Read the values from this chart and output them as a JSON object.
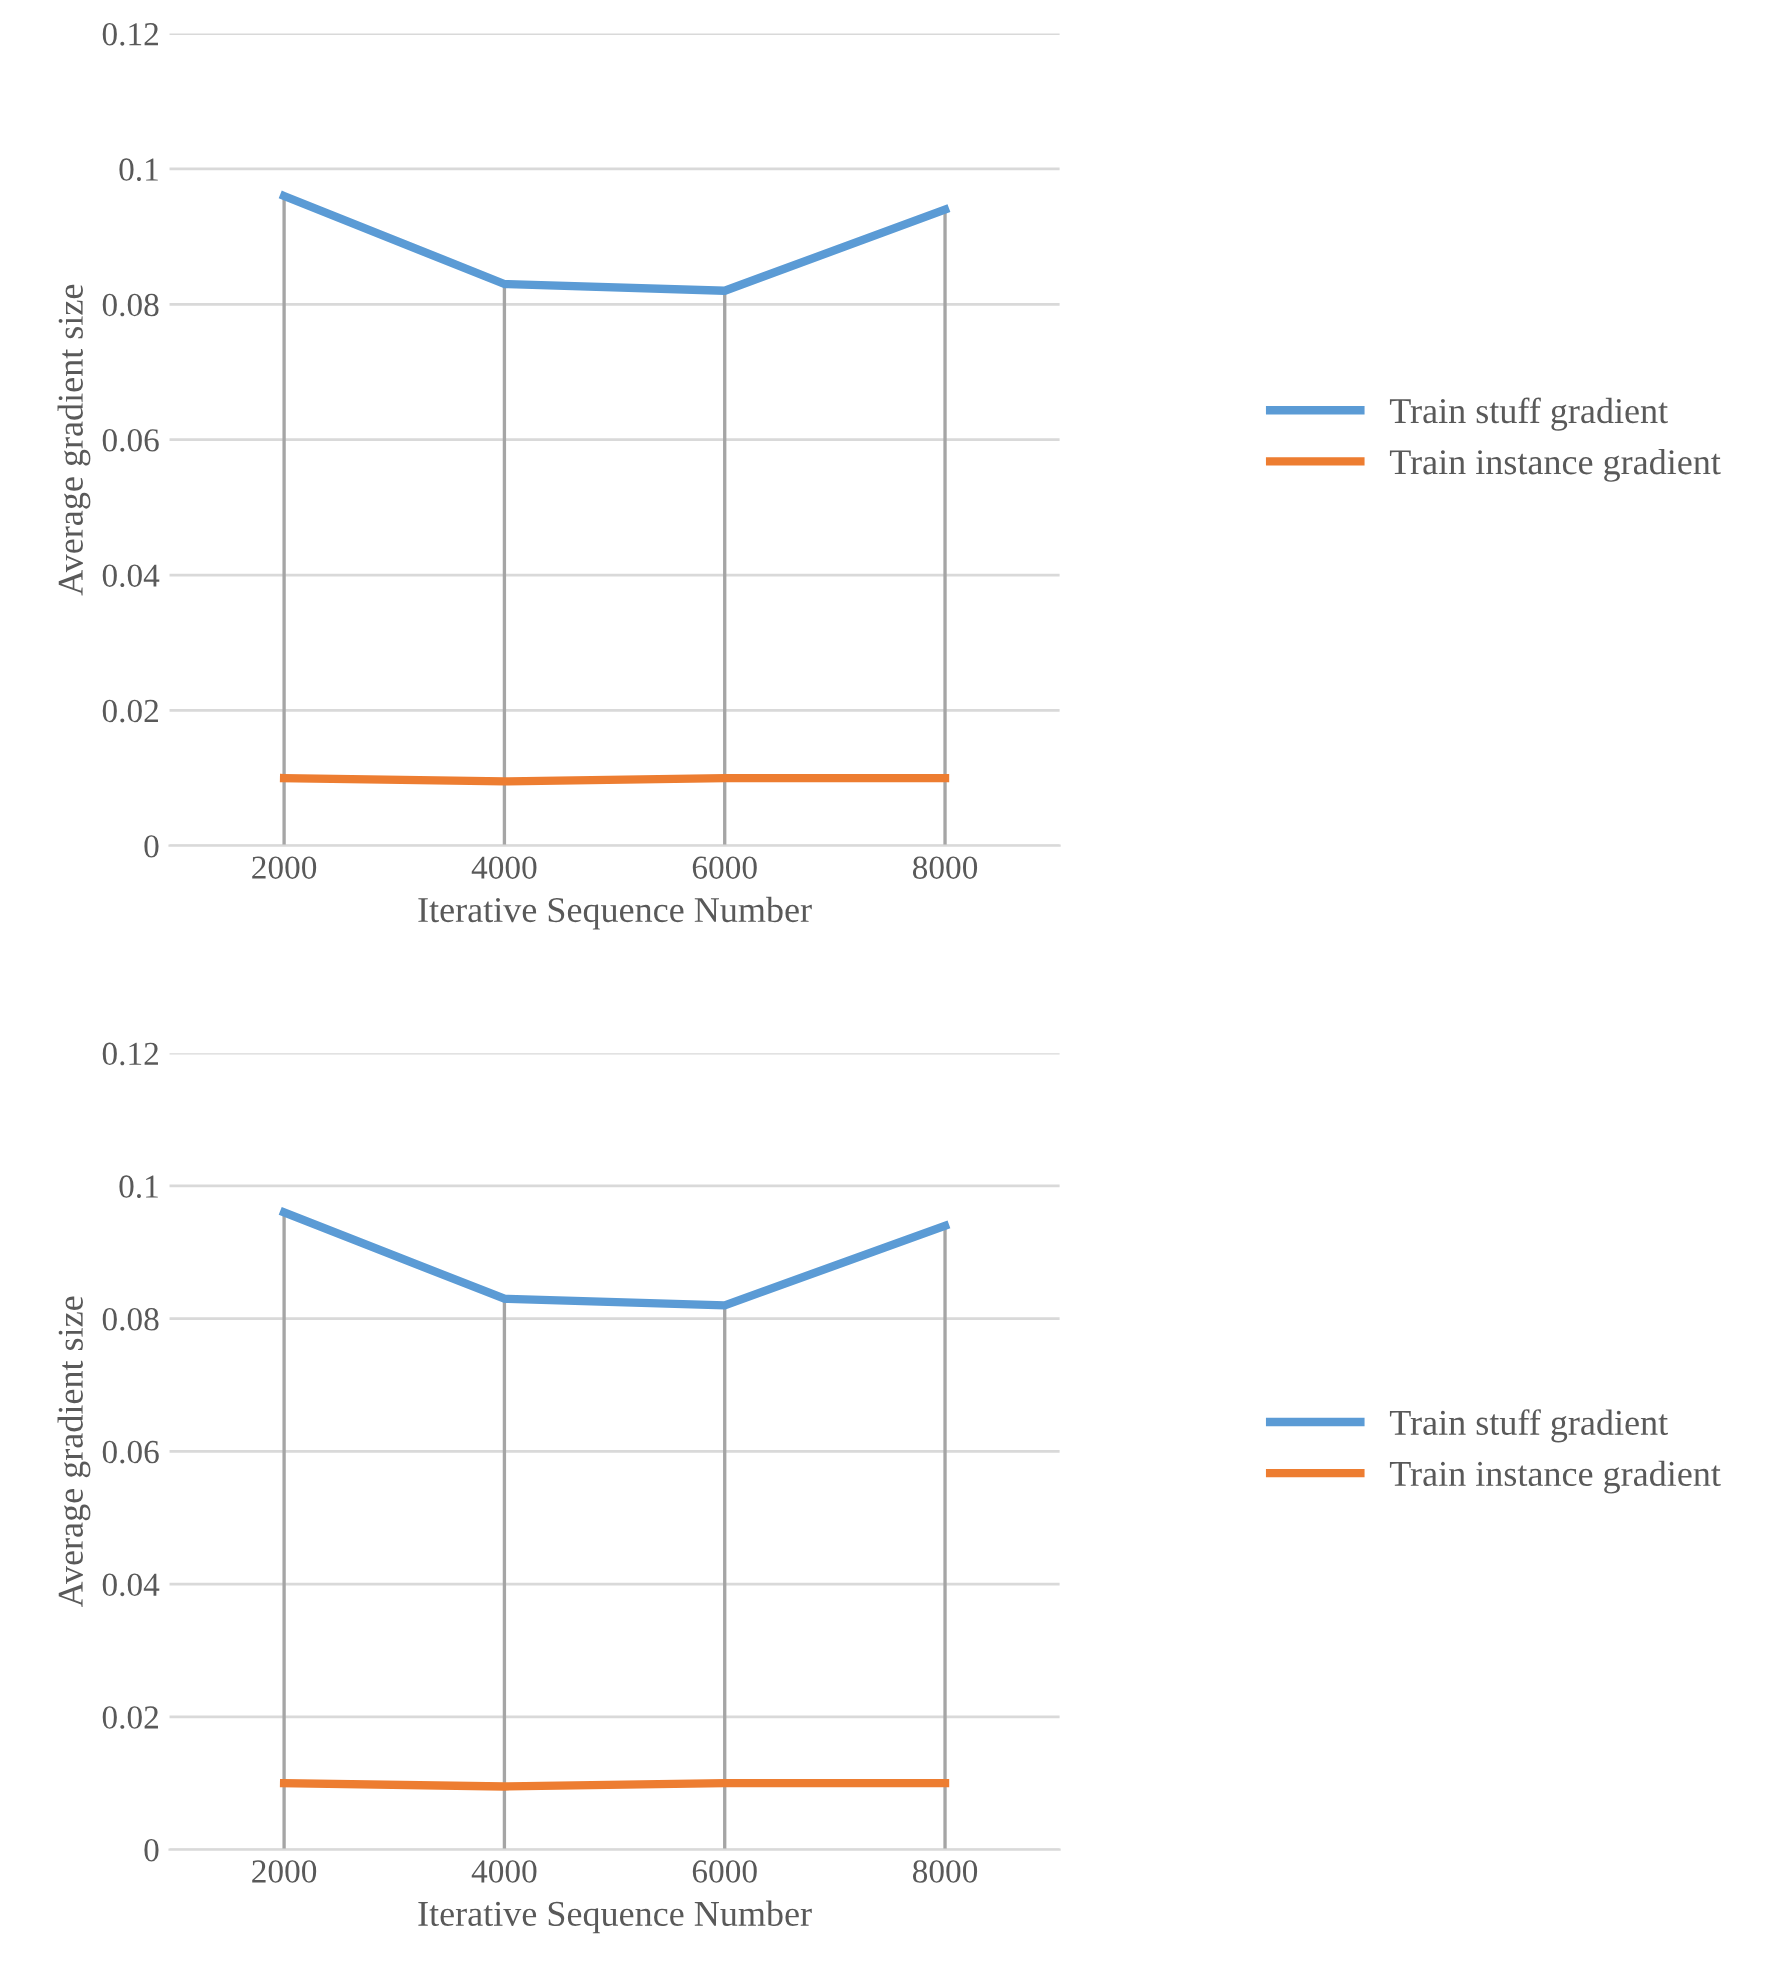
{
  "chart_data": [
    {
      "type": "line",
      "categories": [
        "2000",
        "4000",
        "6000",
        "8000"
      ],
      "xlabel": "Iterative Sequence Number",
      "ylabel": "Average gradient size",
      "ylim": [
        0,
        0.12
      ],
      "yticks": [
        0,
        0.02,
        0.04,
        0.06,
        0.08,
        0.1,
        0.12
      ],
      "grid": "y",
      "legend": "right",
      "marker": "none",
      "line_style": "solid",
      "series": [
        {
          "name": "Train stuff gradient",
          "color": "#5b9bd5",
          "values": [
            0.096,
            0.083,
            0.082,
            0.094
          ]
        },
        {
          "name": "Train instance gradient",
          "color": "#ed7d31",
          "values": [
            0.01,
            0.0095,
            0.01,
            0.01
          ]
        }
      ],
      "ref_lines": [
        {
          "axis": "x",
          "value": "2000",
          "color": "#a5a5a5"
        },
        {
          "axis": "x",
          "value": "4000",
          "color": "#a5a5a5"
        },
        {
          "axis": "x",
          "value": "6000",
          "color": "#a5a5a5"
        },
        {
          "axis": "x",
          "value": "8000",
          "color": "#a5a5a5"
        }
      ]
    },
    {
      "type": "line",
      "categories": [
        "2000",
        "4000",
        "6000",
        "8000"
      ],
      "xlabel": "Iterative Sequence Number",
      "ylabel": "Average gradient size",
      "ylim": [
        0,
        0.12
      ],
      "yticks": [
        0,
        0.02,
        0.04,
        0.06,
        0.08,
        0.1,
        0.12
      ],
      "grid": "y",
      "legend": "right",
      "marker": "none",
      "line_style": "solid",
      "series": [
        {
          "name": "Train stuff gradient",
          "color": "#5b9bd5",
          "values": [
            0.096,
            0.083,
            0.082,
            0.094
          ]
        },
        {
          "name": "Train instance gradient",
          "color": "#ed7d31",
          "values": [
            0.01,
            0.0095,
            0.01,
            0.01
          ]
        }
      ],
      "ref_lines": [
        {
          "axis": "x",
          "value": "2000",
          "color": "#a5a5a5"
        },
        {
          "axis": "x",
          "value": "4000",
          "color": "#a5a5a5"
        },
        {
          "axis": "x",
          "value": "6000",
          "color": "#a5a5a5"
        },
        {
          "axis": "x",
          "value": "8000",
          "color": "#a5a5a5"
        }
      ]
    }
  ]
}
